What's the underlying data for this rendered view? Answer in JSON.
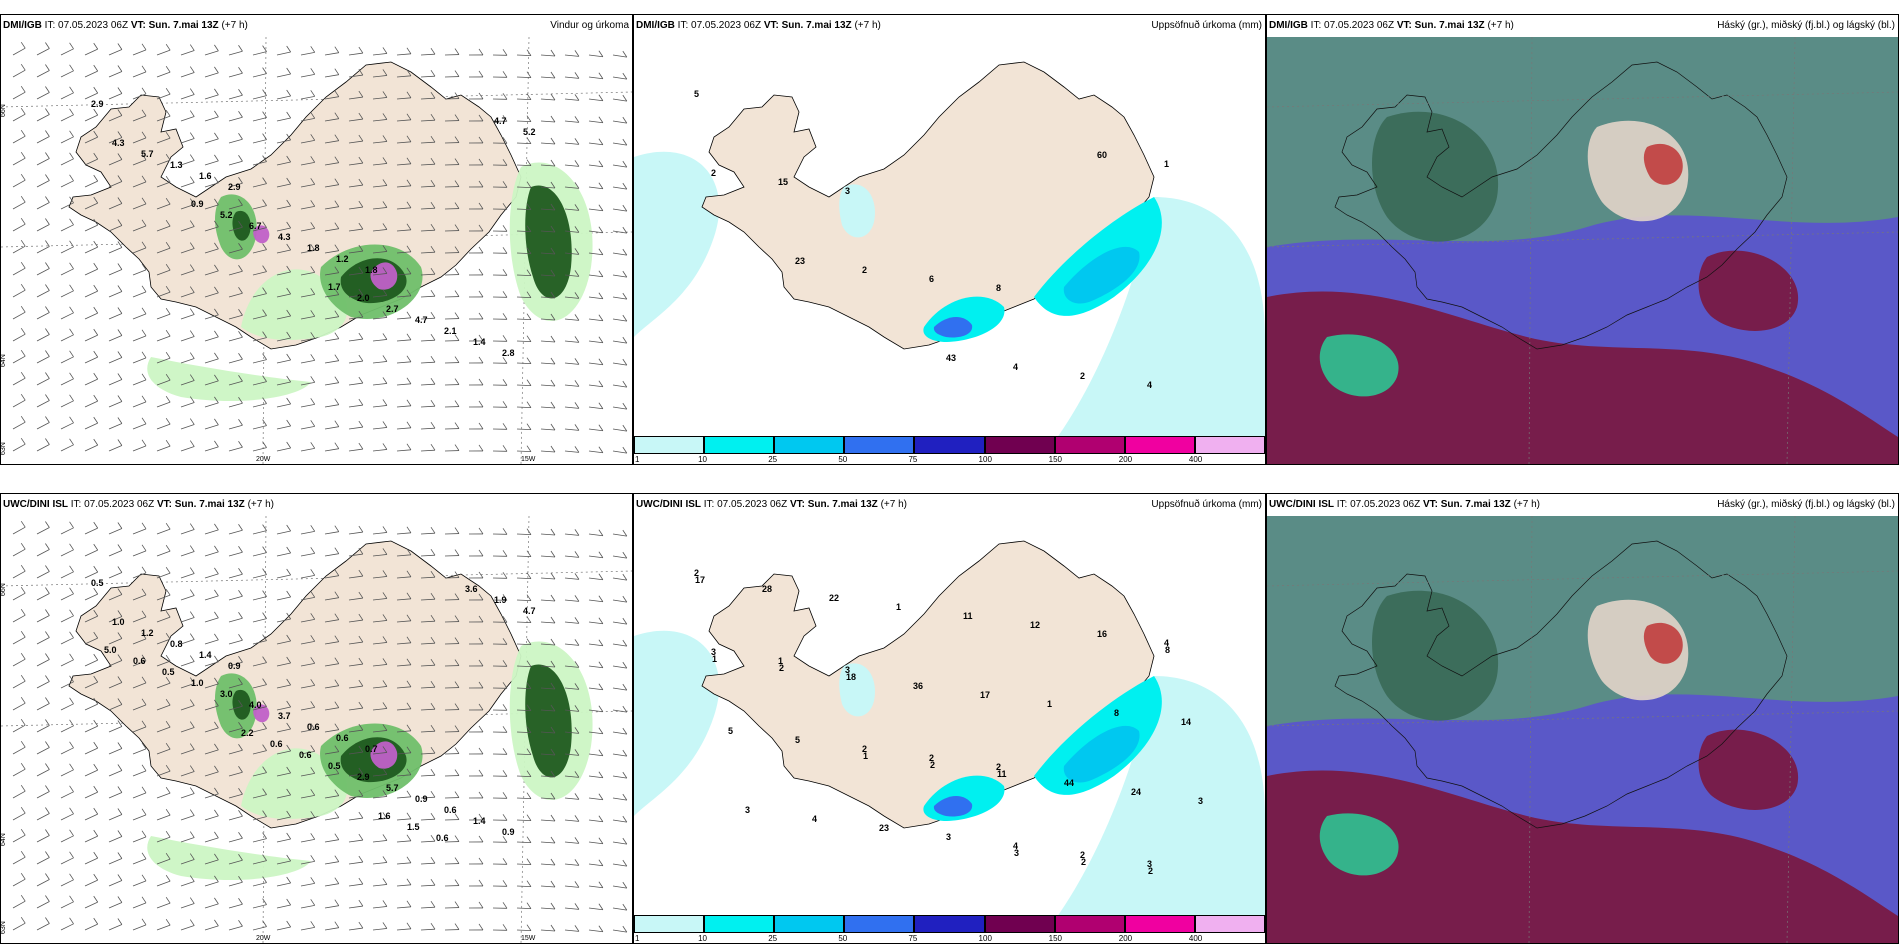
{
  "panels": [
    {
      "model": "DMI/IGB",
      "it": "IT: 07.05.2023 06Z",
      "vt_label": "VT:",
      "vt": "Sun. 7.mai 13Z",
      "lead": "(+7 h)",
      "field": "Vindur og úrkoma",
      "kind": "wind",
      "values": [
        "2.9",
        "2.9",
        "1.8",
        "2.8",
        "1.6",
        "1.2",
        "1.4",
        "1.3",
        "1.8",
        "2.1",
        "5.7",
        "4.3",
        "4.7",
        "4.3",
        "6.7",
        "2.7",
        "5.2",
        "5.2",
        "2.0",
        "4.7",
        "0.9",
        "1.7"
      ]
    },
    {
      "model": "DMI/IGB",
      "it": "IT: 07.05.2023 06Z",
      "vt_label": "VT:",
      "vt": "Sun. 7.mai 13Z",
      "lead": "(+7 h)",
      "field": "Uppsöfnuð úrkoma (mm)",
      "kind": "precip",
      "values": [
        "5",
        "3",
        "8",
        "4",
        "15",
        "6",
        "2",
        "2",
        "2",
        "4",
        "1",
        "23",
        "43",
        "60"
      ]
    },
    {
      "model": "DMI/IGB",
      "it": "IT: 07.05.2023 06Z",
      "vt_label": "VT:",
      "vt": "Sun. 7.mai 13Z",
      "lead": "(+7 h)",
      "field": "Háský (gr.), miðský (fj.bl.) og lágský (bl.)",
      "kind": "cloud",
      "values": []
    },
    {
      "model": "UWC/DINI ISL",
      "it": "IT: 07.05.2023 06Z",
      "vt_label": "VT:",
      "vt": "Sun. 7.mai 13Z",
      "lead": "(+7 h)",
      "field": "",
      "kind": "wind",
      "values": [
        "0.5",
        "0.9",
        "0.7",
        "0.9",
        "1.4",
        "0.6",
        "1.4",
        "0.8",
        "0.6",
        "0.6",
        "1.2",
        "3.7",
        "0.9",
        "1.0",
        "4.0",
        "5.7",
        "4.7",
        "3.0",
        "2.9",
        "1.9",
        "1.0",
        "0.5",
        "3.6",
        "0.5",
        "0.6",
        "0.6",
        "0.6",
        "0.6",
        "1.5",
        "5.0",
        "2.2",
        "1.6"
      ]
    },
    {
      "model": "UWC/DINI ISL",
      "it": "IT: 07.05.2023 06Z",
      "vt_label": "VT:",
      "vt": "Sun. 7.mai 13Z",
      "lead": "(+7 h)",
      "field": "Uppsöfnuð úrkoma (mm)",
      "kind": "precip",
      "values": [
        "2",
        "3",
        "2",
        "3",
        "1",
        "2",
        "2",
        "3",
        "2",
        "4",
        "4",
        "5",
        "3",
        "16",
        "5",
        "23",
        "12",
        "14",
        "4",
        "11",
        "8",
        "3",
        "1",
        "1",
        "3",
        "22",
        "17",
        "24",
        "28",
        "36",
        "44",
        "17",
        "18",
        "11",
        "2",
        "2",
        "2",
        "2",
        "1",
        "1",
        "3",
        "8"
      ]
    },
    {
      "model": "UWC/DINI ISL",
      "it": "IT: 07.05.2023 06Z",
      "vt_label": "VT:",
      "vt": "Sun. 7.mai 13Z",
      "lead": "(+7 h)",
      "field": "Háský (gr.), miðský (fj.bl.) og lágský (bl.)",
      "kind": "cloud",
      "values": []
    }
  ],
  "graticule": {
    "lat_labels": [
      "66N",
      "64N",
      "63N"
    ],
    "lon_labels": [
      "20W",
      "15W"
    ]
  },
  "colorbar": {
    "ticks": [
      "1",
      "10",
      "25",
      "50",
      "75",
      "100",
      "150",
      "200",
      "400"
    ],
    "colors": [
      "#c8f7f7",
      "#00f0f0",
      "#00c8f0",
      "#3070f0",
      "#2020c0",
      "#700050",
      "#b00070",
      "#f000a0",
      "#f0b0f0"
    ]
  },
  "legend_colors": {
    "land": "#f2e4d6",
    "precip_light": "#ccf5c4",
    "precip_mid": "#6fbf6a",
    "precip_heavy": "#1f5a1f",
    "precip_magenta": "#c060c8",
    "cloud_high": "#5a9080",
    "cloud_mid": "#5a58c8",
    "cloud_low": "#7a1840"
  }
}
